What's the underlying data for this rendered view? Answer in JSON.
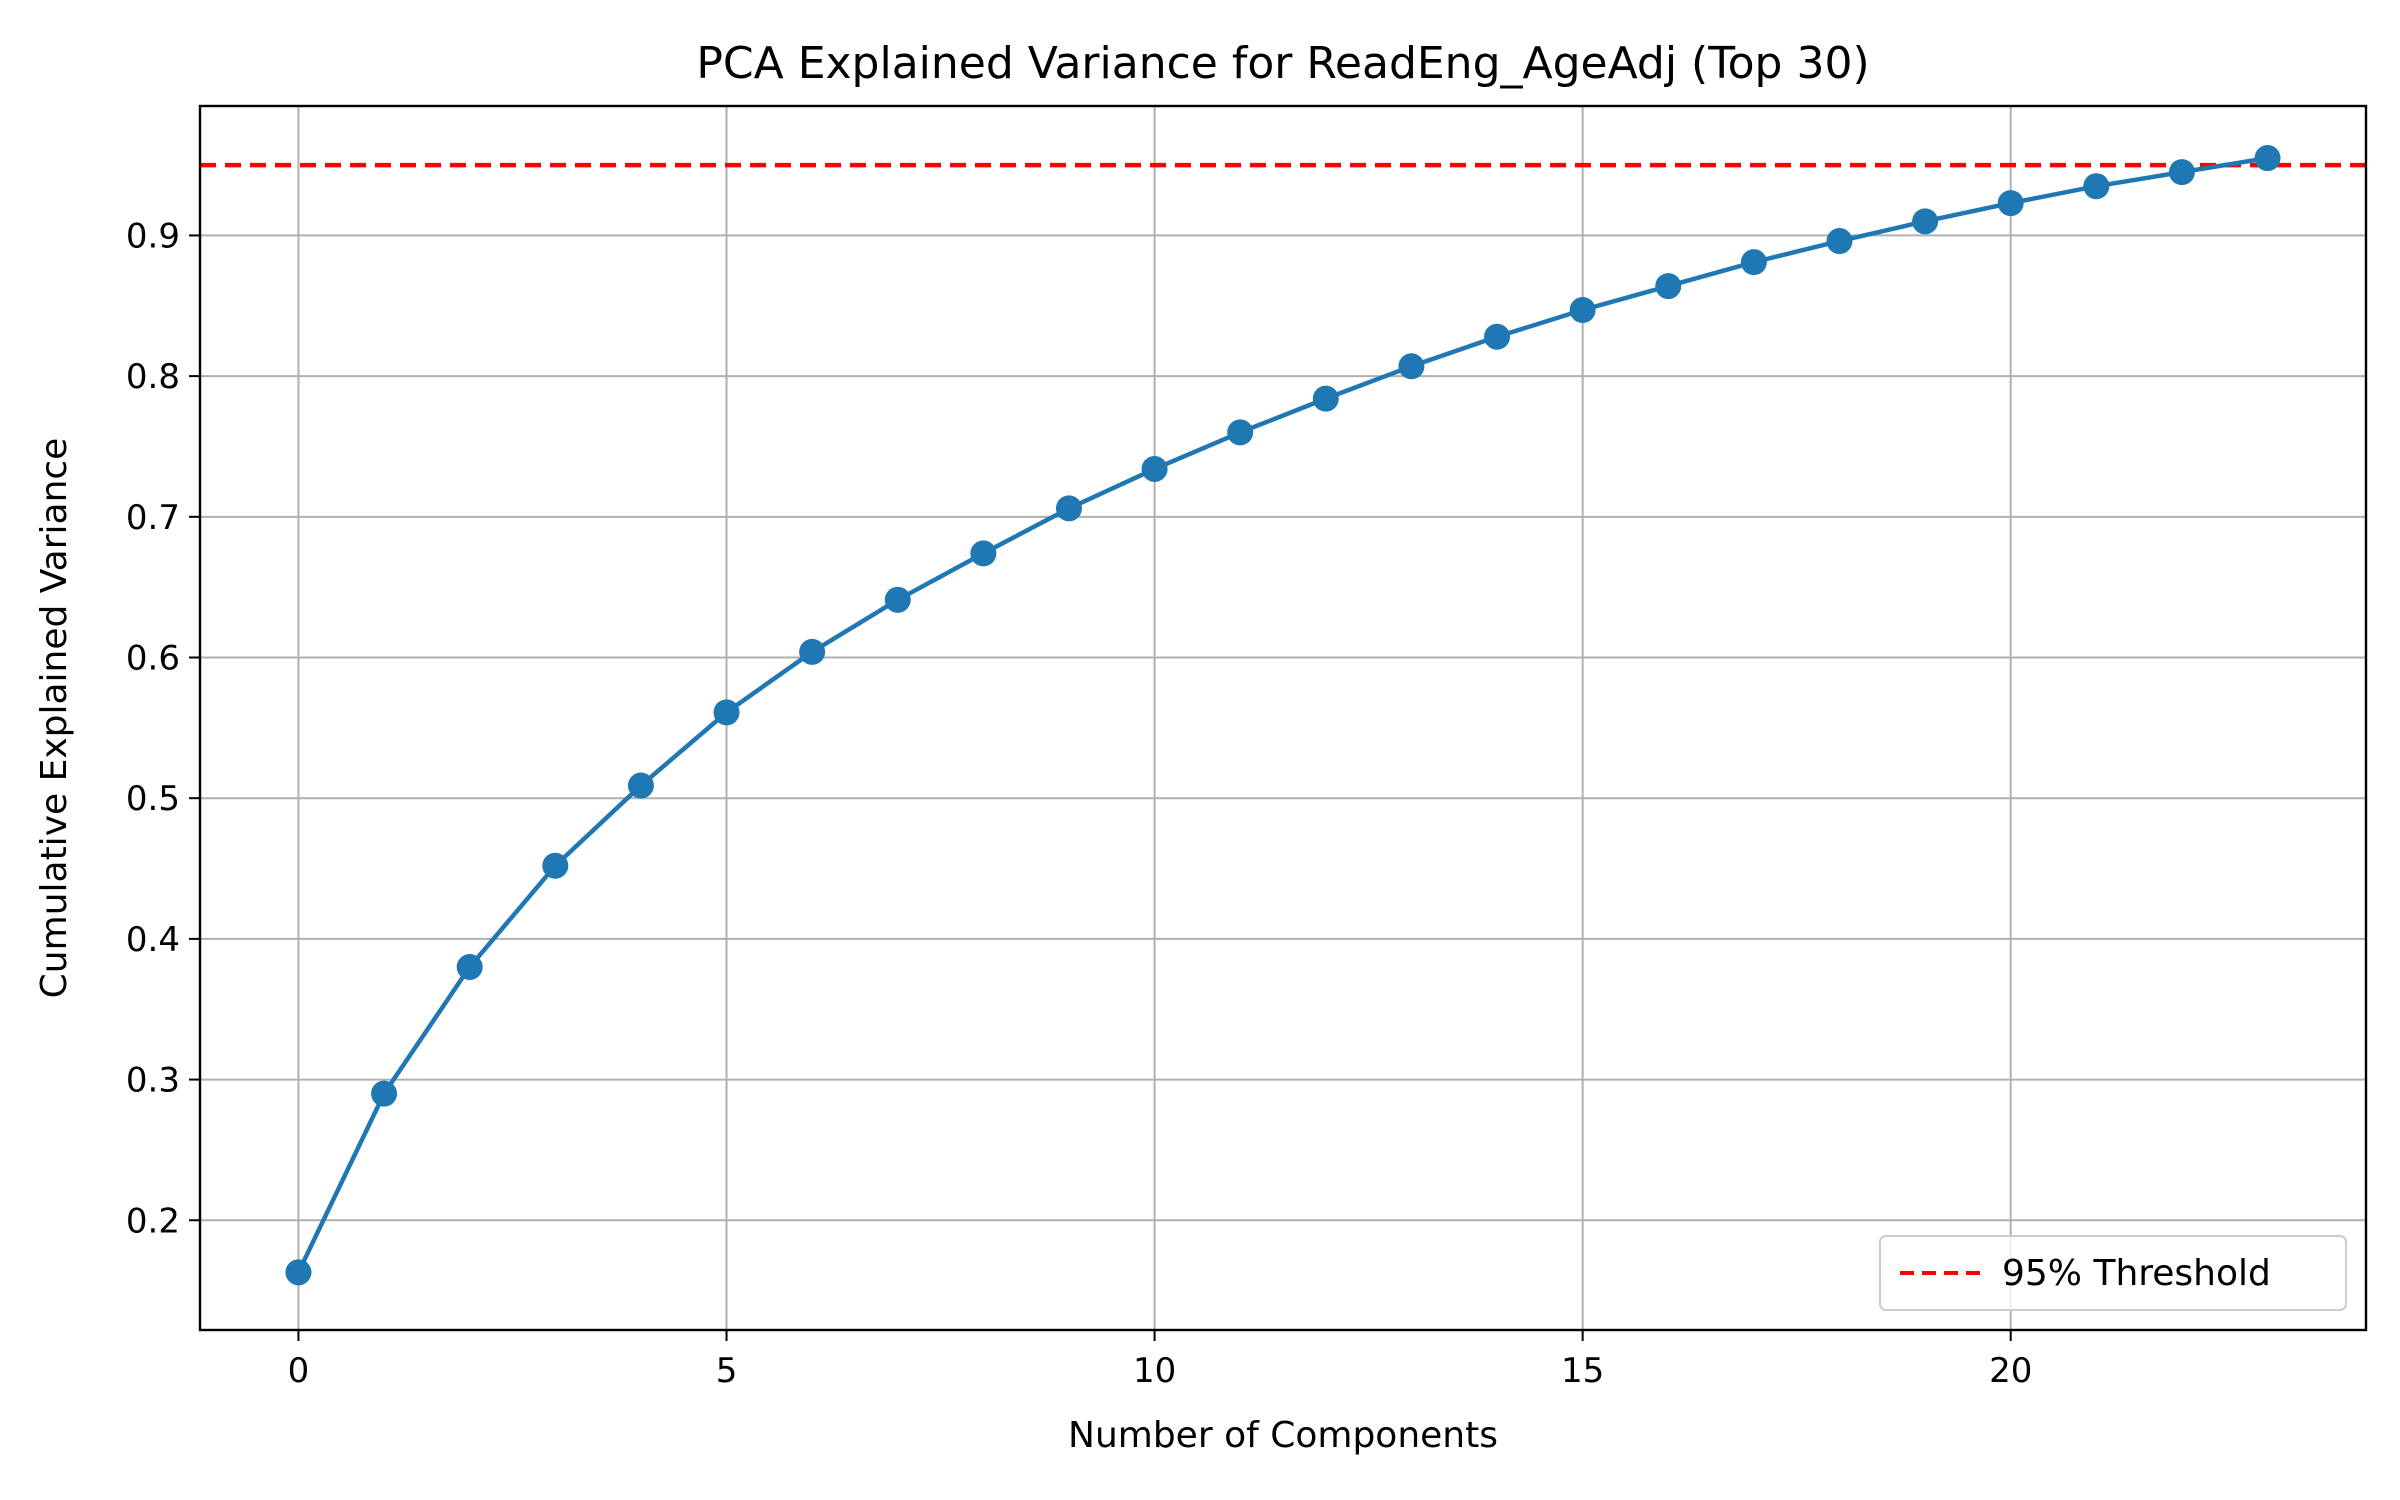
{
  "chart_data": {
    "type": "line",
    "title": "PCA Explained Variance for ReadEng_AgeAdj (Top 30)",
    "xlabel": "Number of Components",
    "ylabel": "Cumulative Explained Variance",
    "xlim": [
      -1.15,
      24.15
    ],
    "ylim": [
      0.122,
      0.992
    ],
    "xticks": [
      0,
      5,
      10,
      15,
      20
    ],
    "yticks": [
      0.2,
      0.3,
      0.4,
      0.5,
      0.6,
      0.7,
      0.8,
      0.9
    ],
    "xtick_labels": [
      "0",
      "5",
      "10",
      "15",
      "20"
    ],
    "ytick_labels": [
      "0.2",
      "0.3",
      "0.4",
      "0.5",
      "0.6",
      "0.7",
      "0.8",
      "0.9"
    ],
    "grid": true,
    "legend_position": "lower-right",
    "series": [
      {
        "color": "#1f77b4",
        "marker": "circle",
        "x": [
          0,
          1,
          2,
          3,
          4,
          5,
          6,
          7,
          8,
          9,
          10,
          11,
          12,
          13,
          14,
          15,
          16,
          17,
          18,
          19,
          20,
          21,
          22,
          23
        ],
        "values": [
          0.163,
          0.29,
          0.38,
          0.452,
          0.509,
          0.561,
          0.604,
          0.641,
          0.674,
          0.706,
          0.734,
          0.76,
          0.784,
          0.807,
          0.828,
          0.847,
          0.864,
          0.881,
          0.896,
          0.91,
          0.923,
          0.935,
          0.945,
          0.955
        ]
      }
    ],
    "reference_lines": [
      {
        "orientation": "horizontal",
        "y": 0.95,
        "name": "95% Threshold",
        "color": "#ff0000",
        "style": "dashed"
      }
    ]
  }
}
